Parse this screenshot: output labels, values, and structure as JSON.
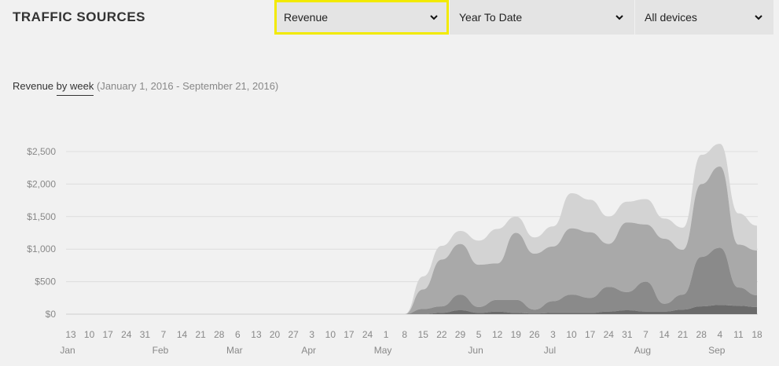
{
  "header": {
    "title": "TRAFFIC SOURCES"
  },
  "filters": {
    "metric": "Revenue",
    "period": "Year To Date",
    "device": "All devices"
  },
  "chart_heading": {
    "prefix": "Revenue",
    "link": "by week",
    "range": "(January 1, 2016 - September 21, 2016)"
  },
  "colors": {
    "background": "#f1f1f1",
    "highlight": "#f2ea00",
    "layer_1": "#d3d3d3",
    "layer_2": "#a9a9a9",
    "layer_3": "#8a8a8a",
    "layer_4": "#6b6b6b"
  },
  "chart_data": {
    "type": "area",
    "stacked": true,
    "y_tick_labels": [
      "$0",
      "$500",
      "$1,000",
      "$1,500",
      "$2,000",
      "$2,500"
    ],
    "y_ticks": [
      0,
      500,
      1000,
      1500,
      2000,
      2500
    ],
    "ylim": [
      0,
      2700
    ],
    "x": [
      "13",
      "10",
      "17",
      "24",
      "31",
      "7",
      "14",
      "21",
      "28",
      "6",
      "13",
      "20",
      "27",
      "3",
      "10",
      "17",
      "24",
      "1",
      "8",
      "15",
      "22",
      "29",
      "5",
      "12",
      "19",
      "26",
      "3",
      "10",
      "17",
      "24",
      "31",
      "7",
      "14",
      "21",
      "28",
      "4",
      "11",
      "18"
    ],
    "month_labels": [
      {
        "label": "Jan",
        "index": 0
      },
      {
        "label": "Feb",
        "index": 5
      },
      {
        "label": "Mar",
        "index": 9
      },
      {
        "label": "Apr",
        "index": 13
      },
      {
        "label": "May",
        "index": 17
      },
      {
        "label": "Jun",
        "index": 22
      },
      {
        "label": "Jul",
        "index": 26
      },
      {
        "label": "Aug",
        "index": 31
      },
      {
        "label": "Sep",
        "index": 35
      }
    ],
    "series": [
      {
        "values": [
          0,
          0,
          0,
          0,
          0,
          0,
          0,
          0,
          0,
          0,
          0,
          0,
          0,
          0,
          0,
          0,
          0,
          0,
          0,
          0,
          20,
          60,
          20,
          40,
          20,
          10,
          20,
          20,
          20,
          40,
          60,
          40,
          40,
          70,
          120,
          140,
          130,
          110
        ]
      },
      {
        "values": [
          0,
          0,
          0,
          0,
          0,
          0,
          0,
          0,
          0,
          0,
          0,
          0,
          0,
          0,
          0,
          0,
          0,
          0,
          0,
          80,
          100,
          240,
          90,
          180,
          200,
          60,
          180,
          280,
          230,
          380,
          280,
          460,
          120,
          230,
          760,
          880,
          280,
          180
        ]
      },
      {
        "values": [
          0,
          0,
          0,
          0,
          0,
          0,
          0,
          0,
          0,
          0,
          0,
          0,
          0,
          0,
          0,
          0,
          0,
          0,
          0,
          300,
          720,
          780,
          650,
          560,
          1030,
          860,
          840,
          1020,
          1010,
          660,
          1070,
          880,
          1000,
          690,
          1120,
          1250,
          660,
          690
        ]
      },
      {
        "values": [
          0,
          0,
          0,
          0,
          0,
          0,
          0,
          0,
          0,
          0,
          0,
          0,
          0,
          0,
          0,
          0,
          0,
          0,
          0,
          200,
          210,
          200,
          370,
          530,
          250,
          250,
          310,
          540,
          500,
          420,
          320,
          390,
          310,
          340,
          450,
          350,
          480,
          380
        ]
      }
    ]
  }
}
